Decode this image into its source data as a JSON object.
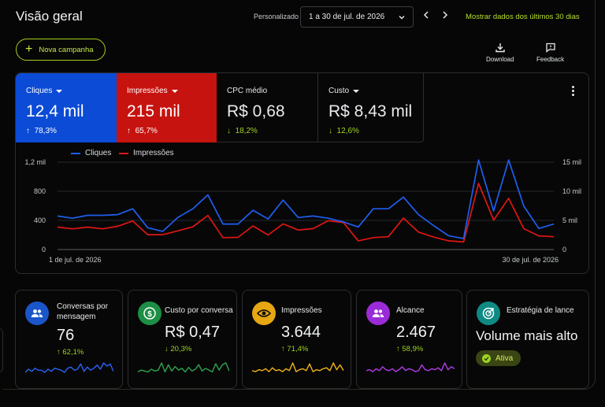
{
  "header": {
    "title": "Visão geral",
    "period_label": "Personalizado",
    "date_range": "1 a 30 de jul. de 2026",
    "show_data_link": "Mostrar dados dos últimos 30 dias"
  },
  "toolbar": {
    "new_campaign_label": "Nova campanha",
    "download_label": "Download",
    "feedback_label": "Feedback"
  },
  "metrics": [
    {
      "label": "Cliques",
      "value": "12,4 mil",
      "change": "78,3%",
      "direction": "up",
      "color": "#0b4bd6"
    },
    {
      "label": "Impressões",
      "value": "215 mil",
      "change": "65,7%",
      "direction": "up",
      "color": "#c6130f"
    },
    {
      "label": "CPC médio",
      "value": "R$ 0,68",
      "change": "18,2%",
      "direction": "down"
    },
    {
      "label": "Custo",
      "value": "R$ 8,43 mil",
      "change": "12,6%",
      "direction": "down"
    }
  ],
  "chart_data": {
    "type": "line",
    "x_start_label": "1 de jul. de 2026",
    "x_end_label": "30 de jul. de 2026",
    "legend": [
      "Cliques",
      "Impressões"
    ],
    "left_axis": {
      "ticks": [
        "0",
        "400",
        "800",
        "1,2 mil"
      ],
      "ylim": [
        0,
        1200
      ]
    },
    "right_axis": {
      "ticks": [
        "0",
        "5 mil",
        "10 mil",
        "15 mil"
      ],
      "ylim": [
        0,
        15000
      ]
    },
    "series": [
      {
        "name": "Cliques",
        "axis": "left",
        "color": "#1f5ef0",
        "values": [
          460,
          430,
          470,
          470,
          480,
          560,
          300,
          250,
          440,
          560,
          750,
          350,
          350,
          540,
          420,
          680,
          440,
          460,
          430,
          380,
          310,
          560,
          560,
          720,
          480,
          330,
          190,
          150,
          1230,
          530,
          1230,
          600,
          290,
          350
        ]
      },
      {
        "name": "Impressões",
        "axis": "right",
        "color": "#e01612",
        "values": [
          3850,
          3550,
          3850,
          3550,
          4000,
          4900,
          2550,
          2550,
          3200,
          3900,
          5850,
          2050,
          2100,
          4050,
          2500,
          4400,
          3350,
          3600,
          4950,
          4650,
          1500,
          2050,
          2200,
          5400,
          3000,
          2150,
          1500,
          1300,
          11350,
          5050,
          8800,
          3600,
          2350,
          2200
        ]
      }
    ]
  },
  "cards": [
    {
      "label": "Conversas por mensagem",
      "label_line1": "Conversas por",
      "label_line2": "mensagem",
      "value": "76",
      "change": "62,1%",
      "icon": "people-icon",
      "icon_color": "#1a56c9",
      "spark_color": "#2b63f5",
      "spark": [
        3,
        6,
        4,
        7,
        5,
        5,
        3,
        6,
        4,
        7,
        6,
        5,
        3,
        7,
        8,
        5,
        6,
        11,
        4,
        8,
        5,
        7,
        10,
        6,
        12,
        9,
        11,
        4
      ]
    },
    {
      "label": "Custo por conversa",
      "value": "R$ 0,47",
      "change": "20,3%",
      "icon": "dollar-icon",
      "icon_color": "#1d8f45",
      "spark_color": "#2fa34f",
      "spark": [
        4,
        6,
        5,
        4,
        7,
        5,
        6,
        14,
        4,
        12,
        5,
        10,
        6,
        8,
        4,
        9,
        5,
        7,
        12,
        5,
        8,
        6,
        4,
        13,
        6,
        12,
        14,
        5
      ]
    },
    {
      "label": "Impressões",
      "value": "3.644",
      "change": "71,4%",
      "icon": "eye-icon",
      "icon_color": "#e6a712",
      "spark_color": "#f0b21a",
      "spark": [
        5,
        4,
        6,
        5,
        7,
        4,
        8,
        5,
        6,
        4,
        7,
        5,
        13,
        4,
        6,
        7,
        5,
        12,
        4,
        6,
        5,
        7,
        8,
        5,
        13,
        6,
        11,
        5
      ]
    },
    {
      "label": "Alcance",
      "value": "2.467",
      "change": "58,9%",
      "icon": "people-icon",
      "icon_color": "#9a2bd8",
      "spark_color": "#b03ce8",
      "spark": [
        5,
        6,
        4,
        7,
        5,
        9,
        6,
        5,
        7,
        4,
        6,
        9,
        5,
        7,
        6,
        4,
        5,
        11,
        6,
        5,
        7,
        6,
        8,
        5,
        13,
        6,
        9,
        7
      ]
    },
    {
      "label": "Estratégia de lance",
      "value": "Volume mais alto",
      "status": "Ativa",
      "icon": "target-icon",
      "icon_color": "#0e8a83"
    }
  ]
}
